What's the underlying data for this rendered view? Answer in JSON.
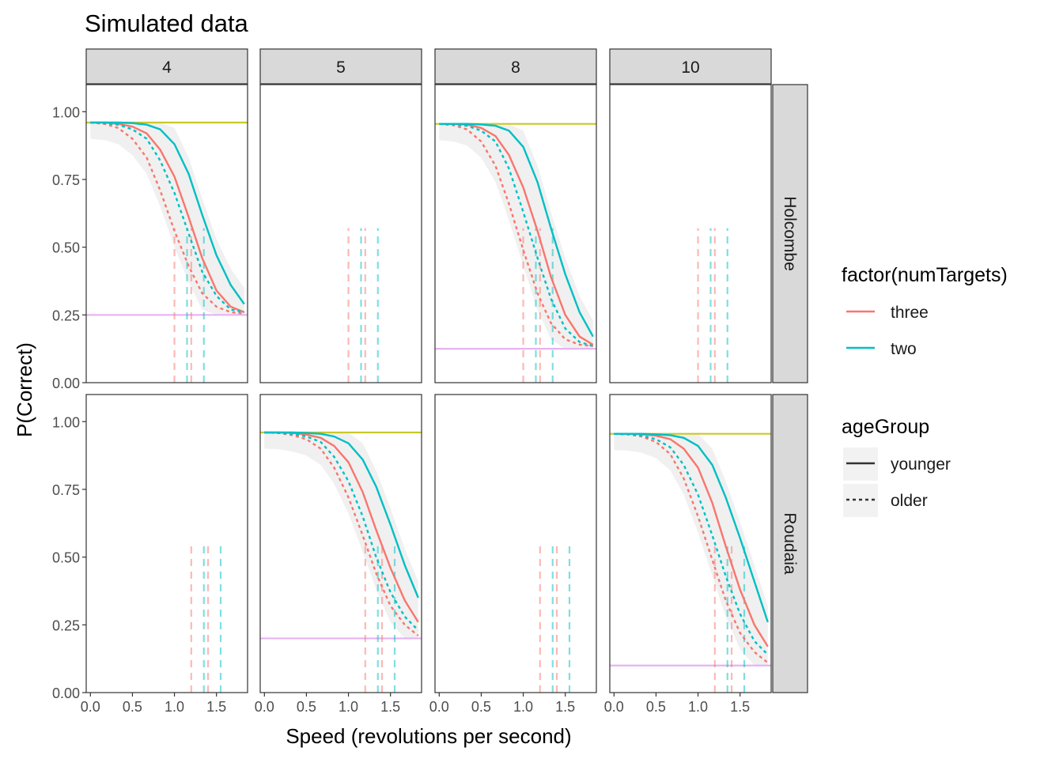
{
  "chart_data": {
    "type": "line",
    "title": "Simulated data",
    "xlabel": "Speed (revolutions per second)",
    "ylabel": "P(Correct)",
    "xlim": [
      -0.05,
      1.87
    ],
    "ylim": [
      0,
      1.1
    ],
    "x_ticks": [
      "0.0",
      "0.5",
      "1.0",
      "1.5"
    ],
    "x_tick_values": [
      0,
      0.5,
      1.0,
      1.5
    ],
    "y_ticks": [
      "0.00",
      "0.25",
      "0.50",
      "0.75",
      "1.00"
    ],
    "y_tick_values": [
      0,
      0.25,
      0.5,
      0.75,
      1.0
    ],
    "facet_columns": [
      "4",
      "5",
      "8",
      "10"
    ],
    "facet_rows": [
      "Holcombe",
      "Roudaia"
    ],
    "colors": {
      "three": "#F8766D",
      "two": "#00BFC4",
      "ceiling": "#C9C92A",
      "chance": "#E6B3F0",
      "ribbon": "#EBEBEB",
      "strip": "#D9D9D9"
    },
    "legends": [
      {
        "title": "factor(numTargets)",
        "items": [
          {
            "label": "three",
            "color": "#F8766D",
            "linetype": "solid"
          },
          {
            "label": "two",
            "color": "#00BFC4",
            "linetype": "solid"
          }
        ]
      },
      {
        "title": "ageGroup",
        "items": [
          {
            "label": "younger",
            "color": "#333333",
            "linetype": "solid"
          },
          {
            "label": "older",
            "color": "#333333",
            "linetype": "dashed"
          }
        ]
      }
    ],
    "panels": [
      {
        "row": "Holcombe",
        "col": "4",
        "has_data": true,
        "ceiling": 0.96,
        "chance": 0.25,
        "vline_top": 0.57,
        "thresholds": [
          {
            "x": 1.0,
            "group": "three"
          },
          {
            "x": 1.2,
            "group": "three"
          },
          {
            "x": 1.15,
            "group": "two"
          },
          {
            "x": 1.35,
            "group": "two"
          }
        ],
        "series": [
          {
            "name": "three",
            "ageGroup": "younger",
            "x": [
              0,
              0.17,
              0.33,
              0.5,
              0.67,
              0.83,
              1.0,
              1.17,
              1.33,
              1.5,
              1.67,
              1.83
            ],
            "values": [
              0.96,
              0.96,
              0.955,
              0.945,
              0.92,
              0.86,
              0.76,
              0.61,
              0.46,
              0.34,
              0.28,
              0.26
            ]
          },
          {
            "name": "three",
            "ageGroup": "older",
            "x": [
              0,
              0.17,
              0.33,
              0.5,
              0.67,
              0.83,
              1.0,
              1.17,
              1.33,
              1.5,
              1.67,
              1.83
            ],
            "values": [
              0.96,
              0.955,
              0.94,
              0.9,
              0.83,
              0.71,
              0.56,
              0.43,
              0.33,
              0.28,
              0.26,
              0.255
            ]
          },
          {
            "name": "two",
            "ageGroup": "younger",
            "x": [
              0,
              0.17,
              0.33,
              0.5,
              0.67,
              0.83,
              1.0,
              1.17,
              1.33,
              1.5,
              1.67,
              1.83
            ],
            "values": [
              0.96,
              0.96,
              0.96,
              0.958,
              0.952,
              0.935,
              0.88,
              0.77,
              0.62,
              0.47,
              0.36,
              0.29
            ]
          },
          {
            "name": "two",
            "ageGroup": "older",
            "x": [
              0,
              0.17,
              0.33,
              0.5,
              0.67,
              0.83,
              1.0,
              1.17,
              1.33,
              1.5,
              1.67,
              1.83
            ],
            "values": [
              0.96,
              0.958,
              0.952,
              0.935,
              0.9,
              0.82,
              0.7,
              0.55,
              0.41,
              0.32,
              0.27,
              0.26
            ]
          }
        ]
      },
      {
        "row": "Holcombe",
        "col": "5",
        "has_data": false,
        "vline_top": 0.57,
        "thresholds": [
          {
            "x": 1.0,
            "group": "three"
          },
          {
            "x": 1.2,
            "group": "three"
          },
          {
            "x": 1.15,
            "group": "two"
          },
          {
            "x": 1.35,
            "group": "two"
          }
        ],
        "series": []
      },
      {
        "row": "Holcombe",
        "col": "8",
        "has_data": true,
        "ceiling": 0.955,
        "chance": 0.125,
        "vline_top": 0.57,
        "thresholds": [
          {
            "x": 1.0,
            "group": "three"
          },
          {
            "x": 1.2,
            "group": "three"
          },
          {
            "x": 1.15,
            "group": "two"
          },
          {
            "x": 1.35,
            "group": "two"
          }
        ],
        "series": [
          {
            "name": "three",
            "ageGroup": "younger",
            "x": [
              0,
              0.17,
              0.33,
              0.5,
              0.67,
              0.83,
              1.0,
              1.17,
              1.33,
              1.5,
              1.67,
              1.83
            ],
            "values": [
              0.955,
              0.955,
              0.952,
              0.94,
              0.91,
              0.84,
              0.72,
              0.56,
              0.39,
              0.25,
              0.17,
              0.14
            ]
          },
          {
            "name": "three",
            "ageGroup": "older",
            "x": [
              0,
              0.17,
              0.33,
              0.5,
              0.67,
              0.83,
              1.0,
              1.17,
              1.33,
              1.5,
              1.67,
              1.83
            ],
            "values": [
              0.955,
              0.95,
              0.935,
              0.89,
              0.8,
              0.66,
              0.49,
              0.33,
              0.22,
              0.16,
              0.14,
              0.135
            ]
          },
          {
            "name": "two",
            "ageGroup": "younger",
            "x": [
              0,
              0.17,
              0.33,
              0.5,
              0.67,
              0.83,
              1.0,
              1.17,
              1.33,
              1.5,
              1.67,
              1.83
            ],
            "values": [
              0.955,
              0.955,
              0.955,
              0.953,
              0.948,
              0.93,
              0.87,
              0.74,
              0.57,
              0.4,
              0.26,
              0.17
            ]
          },
          {
            "name": "two",
            "ageGroup": "older",
            "x": [
              0,
              0.17,
              0.33,
              0.5,
              0.67,
              0.83,
              1.0,
              1.17,
              1.33,
              1.5,
              1.67,
              1.83
            ],
            "values": [
              0.955,
              0.953,
              0.948,
              0.93,
              0.89,
              0.79,
              0.63,
              0.46,
              0.31,
              0.2,
              0.15,
              0.135
            ]
          }
        ]
      },
      {
        "row": "Holcombe",
        "col": "10",
        "has_data": false,
        "vline_top": 0.57,
        "thresholds": [
          {
            "x": 1.0,
            "group": "three"
          },
          {
            "x": 1.2,
            "group": "three"
          },
          {
            "x": 1.15,
            "group": "two"
          },
          {
            "x": 1.35,
            "group": "two"
          }
        ],
        "series": []
      },
      {
        "row": "Roudaia",
        "col": "4",
        "has_data": false,
        "vline_top": 0.55,
        "thresholds": [
          {
            "x": 1.2,
            "group": "three"
          },
          {
            "x": 1.4,
            "group": "three"
          },
          {
            "x": 1.35,
            "group": "two"
          },
          {
            "x": 1.55,
            "group": "two"
          }
        ],
        "series": []
      },
      {
        "row": "Roudaia",
        "col": "5",
        "has_data": true,
        "ceiling": 0.96,
        "chance": 0.2,
        "vline_top": 0.55,
        "thresholds": [
          {
            "x": 1.2,
            "group": "three"
          },
          {
            "x": 1.4,
            "group": "three"
          },
          {
            "x": 1.35,
            "group": "two"
          },
          {
            "x": 1.55,
            "group": "two"
          }
        ],
        "series": [
          {
            "name": "three",
            "ageGroup": "younger",
            "x": [
              0,
              0.17,
              0.33,
              0.5,
              0.67,
              0.83,
              1.0,
              1.17,
              1.33,
              1.5,
              1.67,
              1.83
            ],
            "values": [
              0.96,
              0.96,
              0.958,
              0.952,
              0.94,
              0.91,
              0.85,
              0.74,
              0.6,
              0.46,
              0.34,
              0.26
            ]
          },
          {
            "name": "three",
            "ageGroup": "older",
            "x": [
              0,
              0.17,
              0.33,
              0.5,
              0.67,
              0.83,
              1.0,
              1.17,
              1.33,
              1.5,
              1.67,
              1.83
            ],
            "values": [
              0.96,
              0.958,
              0.95,
              0.935,
              0.9,
              0.83,
              0.72,
              0.58,
              0.44,
              0.32,
              0.25,
              0.21
            ]
          },
          {
            "name": "two",
            "ageGroup": "younger",
            "x": [
              0,
              0.17,
              0.33,
              0.5,
              0.67,
              0.83,
              1.0,
              1.17,
              1.33,
              1.5,
              1.67,
              1.83
            ],
            "values": [
              0.96,
              0.96,
              0.96,
              0.958,
              0.955,
              0.945,
              0.92,
              0.86,
              0.76,
              0.62,
              0.47,
              0.35
            ]
          },
          {
            "name": "two",
            "ageGroup": "older",
            "x": [
              0,
              0.17,
              0.33,
              0.5,
              0.67,
              0.83,
              1.0,
              1.17,
              1.33,
              1.5,
              1.67,
              1.83
            ],
            "values": [
              0.96,
              0.958,
              0.955,
              0.945,
              0.925,
              0.87,
              0.78,
              0.65,
              0.5,
              0.37,
              0.28,
              0.23
            ]
          }
        ]
      },
      {
        "row": "Roudaia",
        "col": "8",
        "has_data": false,
        "vline_top": 0.55,
        "thresholds": [
          {
            "x": 1.2,
            "group": "three"
          },
          {
            "x": 1.4,
            "group": "three"
          },
          {
            "x": 1.35,
            "group": "two"
          },
          {
            "x": 1.55,
            "group": "two"
          }
        ],
        "series": []
      },
      {
        "row": "Roudaia",
        "col": "10",
        "has_data": true,
        "ceiling": 0.955,
        "chance": 0.1,
        "vline_top": 0.55,
        "thresholds": [
          {
            "x": 1.2,
            "group": "three"
          },
          {
            "x": 1.4,
            "group": "three"
          },
          {
            "x": 1.35,
            "group": "two"
          },
          {
            "x": 1.55,
            "group": "two"
          }
        ],
        "series": [
          {
            "name": "three",
            "ageGroup": "younger",
            "x": [
              0,
              0.17,
              0.33,
              0.5,
              0.67,
              0.83,
              1.0,
              1.17,
              1.33,
              1.5,
              1.67,
              1.83
            ],
            "values": [
              0.955,
              0.955,
              0.953,
              0.948,
              0.935,
              0.9,
              0.83,
              0.7,
              0.54,
              0.38,
              0.25,
              0.17
            ]
          },
          {
            "name": "three",
            "ageGroup": "older",
            "x": [
              0,
              0.17,
              0.33,
              0.5,
              0.67,
              0.83,
              1.0,
              1.17,
              1.33,
              1.5,
              1.67,
              1.83
            ],
            "values": [
              0.955,
              0.953,
              0.945,
              0.925,
              0.88,
              0.79,
              0.65,
              0.49,
              0.34,
              0.22,
              0.15,
              0.11
            ]
          },
          {
            "name": "two",
            "ageGroup": "younger",
            "x": [
              0,
              0.17,
              0.33,
              0.5,
              0.67,
              0.83,
              1.0,
              1.17,
              1.33,
              1.5,
              1.67,
              1.83
            ],
            "values": [
              0.955,
              0.955,
              0.955,
              0.953,
              0.95,
              0.94,
              0.91,
              0.84,
              0.72,
              0.57,
              0.41,
              0.26
            ]
          },
          {
            "name": "two",
            "ageGroup": "older",
            "x": [
              0,
              0.17,
              0.33,
              0.5,
              0.67,
              0.83,
              1.0,
              1.17,
              1.33,
              1.5,
              1.67,
              1.83
            ],
            "values": [
              0.955,
              0.953,
              0.948,
              0.935,
              0.905,
              0.84,
              0.73,
              0.58,
              0.43,
              0.29,
              0.19,
              0.14
            ]
          }
        ]
      }
    ]
  }
}
